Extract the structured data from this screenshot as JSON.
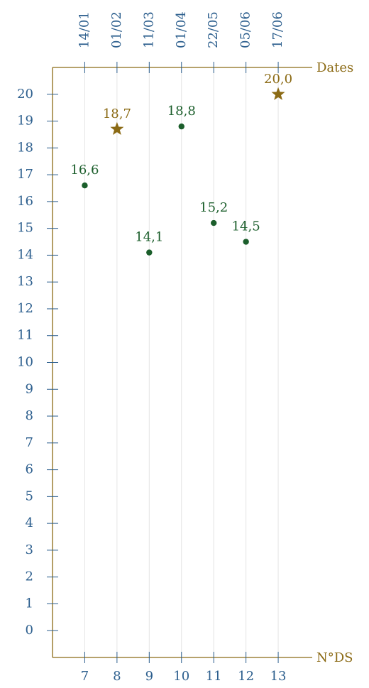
{
  "chart_data": {
    "type": "scatter",
    "x_label": "N°DS",
    "x2_label": "Dates",
    "x": [
      7,
      8,
      9,
      10,
      11,
      12,
      13
    ],
    "values": [
      16.6,
      18.7,
      14.1,
      18.8,
      15.2,
      14.5,
      20.0
    ],
    "value_labels": [
      "16,6",
      "18,7",
      "14,1",
      "18,8",
      "15,2",
      "14,5",
      "20,0"
    ],
    "markers": [
      "dot",
      "star",
      "dot",
      "dot",
      "dot",
      "dot",
      "star"
    ],
    "colors": [
      "#1b5e2b",
      "#8b6a14",
      "#1b5e2b",
      "#1b5e2b",
      "#1b5e2b",
      "#1b5e2b",
      "#8b6a14"
    ],
    "x2_labels": [
      "14/01",
      "01/02",
      "11/03",
      "01/04",
      "22/05",
      "05/06",
      "17/06"
    ],
    "xlim": [
      6,
      14
    ],
    "ylim": [
      -1,
      21
    ],
    "xticks": [
      7,
      8,
      9,
      10,
      11,
      12,
      13
    ],
    "yticks": [
      0,
      1,
      2,
      3,
      4,
      5,
      6,
      7,
      8,
      9,
      10,
      11,
      12,
      13,
      14,
      15,
      16,
      17,
      18,
      19,
      20
    ],
    "grid": true
  }
}
